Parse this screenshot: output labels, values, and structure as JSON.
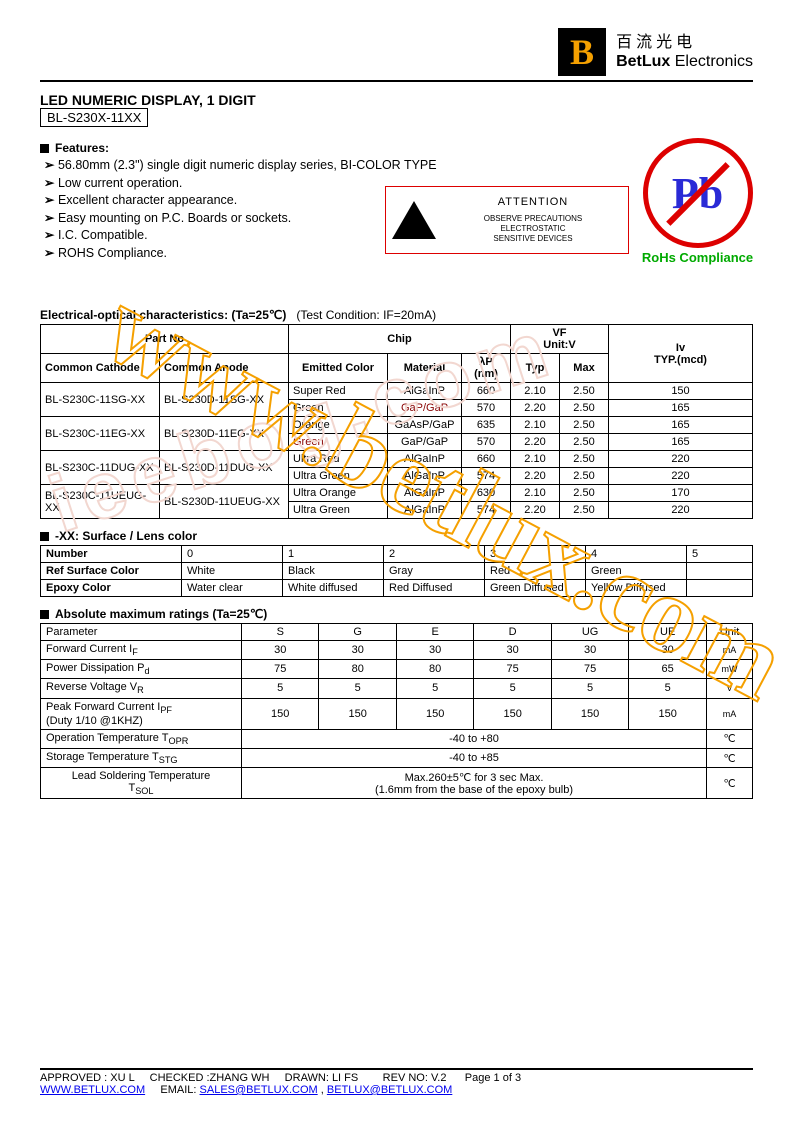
{
  "logo": {
    "mark": "B",
    "cn": "百流光电",
    "en_bold": "BetLux",
    "en_rest": " Electronics"
  },
  "title": "LED NUMERIC DISPLAY, 1 DIGIT",
  "model": "BL-S230X-11XX",
  "features_label": "Features:",
  "features": [
    "56.80mm (2.3\") single digit numeric display series, BI-COLOR TYPE",
    "Low current operation.",
    "Excellent character appearance.",
    "Easy mounting on P.C. Boards or sockets.",
    "I.C. Compatible.",
    "ROHS Compliance."
  ],
  "esd": {
    "att": "ATTENTION",
    "l1": "OBSERVE PRECAUTIONS",
    "l2": "ELECTROSTATIC",
    "l3": "SENSITIVE DEVICES"
  },
  "pb": {
    "sym": "Pb",
    "lbl": "RoHs Compliance"
  },
  "eo": {
    "title": "Electrical-optical characteristics: (Ta=25℃)",
    "cond": "(Test Condition: IF=20mA)",
    "h_partno": "Part No",
    "h_chip": "Chip",
    "h_vf": "VF\nUnit:V",
    "h_iv": "Iv\nTYP.(mcd)",
    "h_cc": "Common Cathode",
    "h_ca": "Common Anode",
    "h_ec": "Emitted Color",
    "h_mat": "Material",
    "h_lp": "λP\n(nm)",
    "h_typ": "Typ",
    "h_max": "Max",
    "rows": [
      {
        "cc": "BL-S230C-11SG-XX",
        "ca": "BL-S230D-11SG-XX",
        "ec": "Super Red",
        "mat": "AlGaInP",
        "lp": "660",
        "typ": "2.10",
        "max": "2.50",
        "iv": "150"
      },
      {
        "cc": "",
        "ca": "",
        "ec": "Green",
        "mat": "GaP/GaP",
        "lp": "570",
        "typ": "2.20",
        "max": "2.50",
        "iv": "165",
        "red": true
      },
      {
        "cc": "BL-S230C-11EG-XX",
        "ca": "BL-S230D-11EG-XX",
        "ec": "Orange",
        "mat": "GaAsP/GaP",
        "lp": "635",
        "typ": "2.10",
        "max": "2.50",
        "iv": "165"
      },
      {
        "cc": "",
        "ca": "",
        "ec": "Green",
        "mat": "GaP/GaP",
        "lp": "570",
        "typ": "2.20",
        "max": "2.50",
        "iv": "165",
        "ecred": true
      },
      {
        "cc": "BL-S230C-11DUG-XX",
        "ca": "BL-S230D-11DUG-XX",
        "ec": "Ultra Red",
        "mat": "AlGaInP",
        "lp": "660",
        "typ": "2.10",
        "max": "2.50",
        "iv": "220"
      },
      {
        "cc": "",
        "ca": "",
        "ec": "Ultra Green",
        "mat": "AlGaInP",
        "lp": "574",
        "typ": "2.20",
        "max": "2.50",
        "iv": "220"
      },
      {
        "cc": "BL-S230C-11UEUG-XX",
        "ca": "BL-S230D-11UEUG-XX",
        "ec": "Ultra Orange",
        "mat": "AlGaInP",
        "lp": "630",
        "typ": "2.10",
        "max": "2.50",
        "iv": "170"
      },
      {
        "cc": "",
        "ca": "",
        "ec": "Ultra Green",
        "mat": "AlGaInP",
        "lp": "574",
        "typ": "2.20",
        "max": "2.50",
        "iv": "220"
      }
    ]
  },
  "lens": {
    "title": "-XX: Surface / Lens color",
    "h": [
      "Number",
      "0",
      "1",
      "2",
      "3",
      "4",
      "5"
    ],
    "r1": [
      "Ref Surface Color",
      "White",
      "Black",
      "Gray",
      "Red",
      "Green",
      ""
    ],
    "r2": [
      "Epoxy Color",
      "Water clear",
      "White diffused",
      "Red Diffused",
      "Green Diffused",
      "Yellow Diffused",
      ""
    ]
  },
  "abs": {
    "title": "Absolute maximum ratings (Ta=25℃)",
    "h": [
      "Parameter",
      "S",
      "G",
      "E",
      "D",
      "UG",
      "UE",
      "Unit"
    ],
    "rows": [
      [
        "Forward Current I<sub>F</sub>",
        "30",
        "30",
        "30",
        "30",
        "30",
        "30",
        "mA"
      ],
      [
        "Power Dissipation P<sub>d</sub>",
        "75",
        "80",
        "80",
        "75",
        "75",
        "65",
        "mW"
      ],
      [
        "Reverse Voltage V<sub>R</sub>",
        "5",
        "5",
        "5",
        "5",
        "5",
        "5",
        "V"
      ],
      [
        "Peak Forward Current I<sub>PF</sub><br>(Duty 1/10 @1KHZ)",
        "150",
        "150",
        "150",
        "150",
        "150",
        "150",
        "mA"
      ]
    ],
    "span_rows": [
      [
        "Operation Temperature T<sub>OPR</sub>",
        "-40 to +80",
        "℃"
      ],
      [
        "Storage Temperature T<sub>STG</sub>",
        "-40 to +85",
        "℃"
      ],
      [
        "Lead Soldering Temperature<br>T<sub>SOL</sub>",
        "Max.260±5℃   for 3 sec Max.<br>(1.6mm from the base of the epoxy bulb)",
        "℃"
      ]
    ]
  },
  "footer": {
    "line1": "APPROVED : XU L     CHECKED :ZHANG WH     DRAWN: LI FS        REV NO: V.2      Page 1 of 3",
    "url": "WWW.BETLUX.COM",
    "emails_lbl": "EMAIL:",
    "email1": "SALES@BETLUX.COM",
    "email2": "BETLUX@BETLUX.COM"
  },
  "watermark": "www.betlux.com",
  "watermark2": "ieebog.com"
}
